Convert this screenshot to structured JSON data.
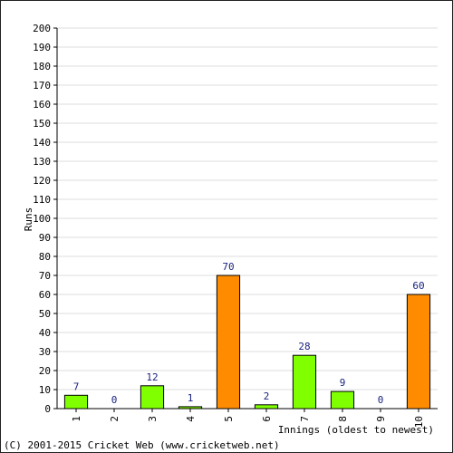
{
  "chart_data": {
    "type": "bar",
    "categories": [
      "1",
      "2",
      "3",
      "4",
      "5",
      "6",
      "7",
      "8",
      "9",
      "10"
    ],
    "values": [
      7,
      0,
      12,
      1,
      70,
      2,
      28,
      9,
      0,
      60
    ],
    "data_labels": [
      "7",
      "0",
      "12",
      "1",
      "70",
      "2",
      "28",
      "9",
      "0",
      "60"
    ],
    "bar_kind": [
      "normal",
      "normal",
      "normal",
      "normal",
      "highlight",
      "normal",
      "normal",
      "normal",
      "normal",
      "highlight"
    ],
    "colors": {
      "normal": "#80ff00",
      "highlight": "#ff8c00",
      "grid": "#dddddd",
      "axis": "#000000",
      "label": "#1a237e"
    },
    "ylabel": "Runs",
    "xlabel": "Innings (oldest to newest)",
    "ylim": [
      0,
      200
    ],
    "ytick_step": 10,
    "grid": true
  },
  "footer": {
    "copyright": "(C) 2001-2015 Cricket Web (www.cricketweb.net)"
  }
}
